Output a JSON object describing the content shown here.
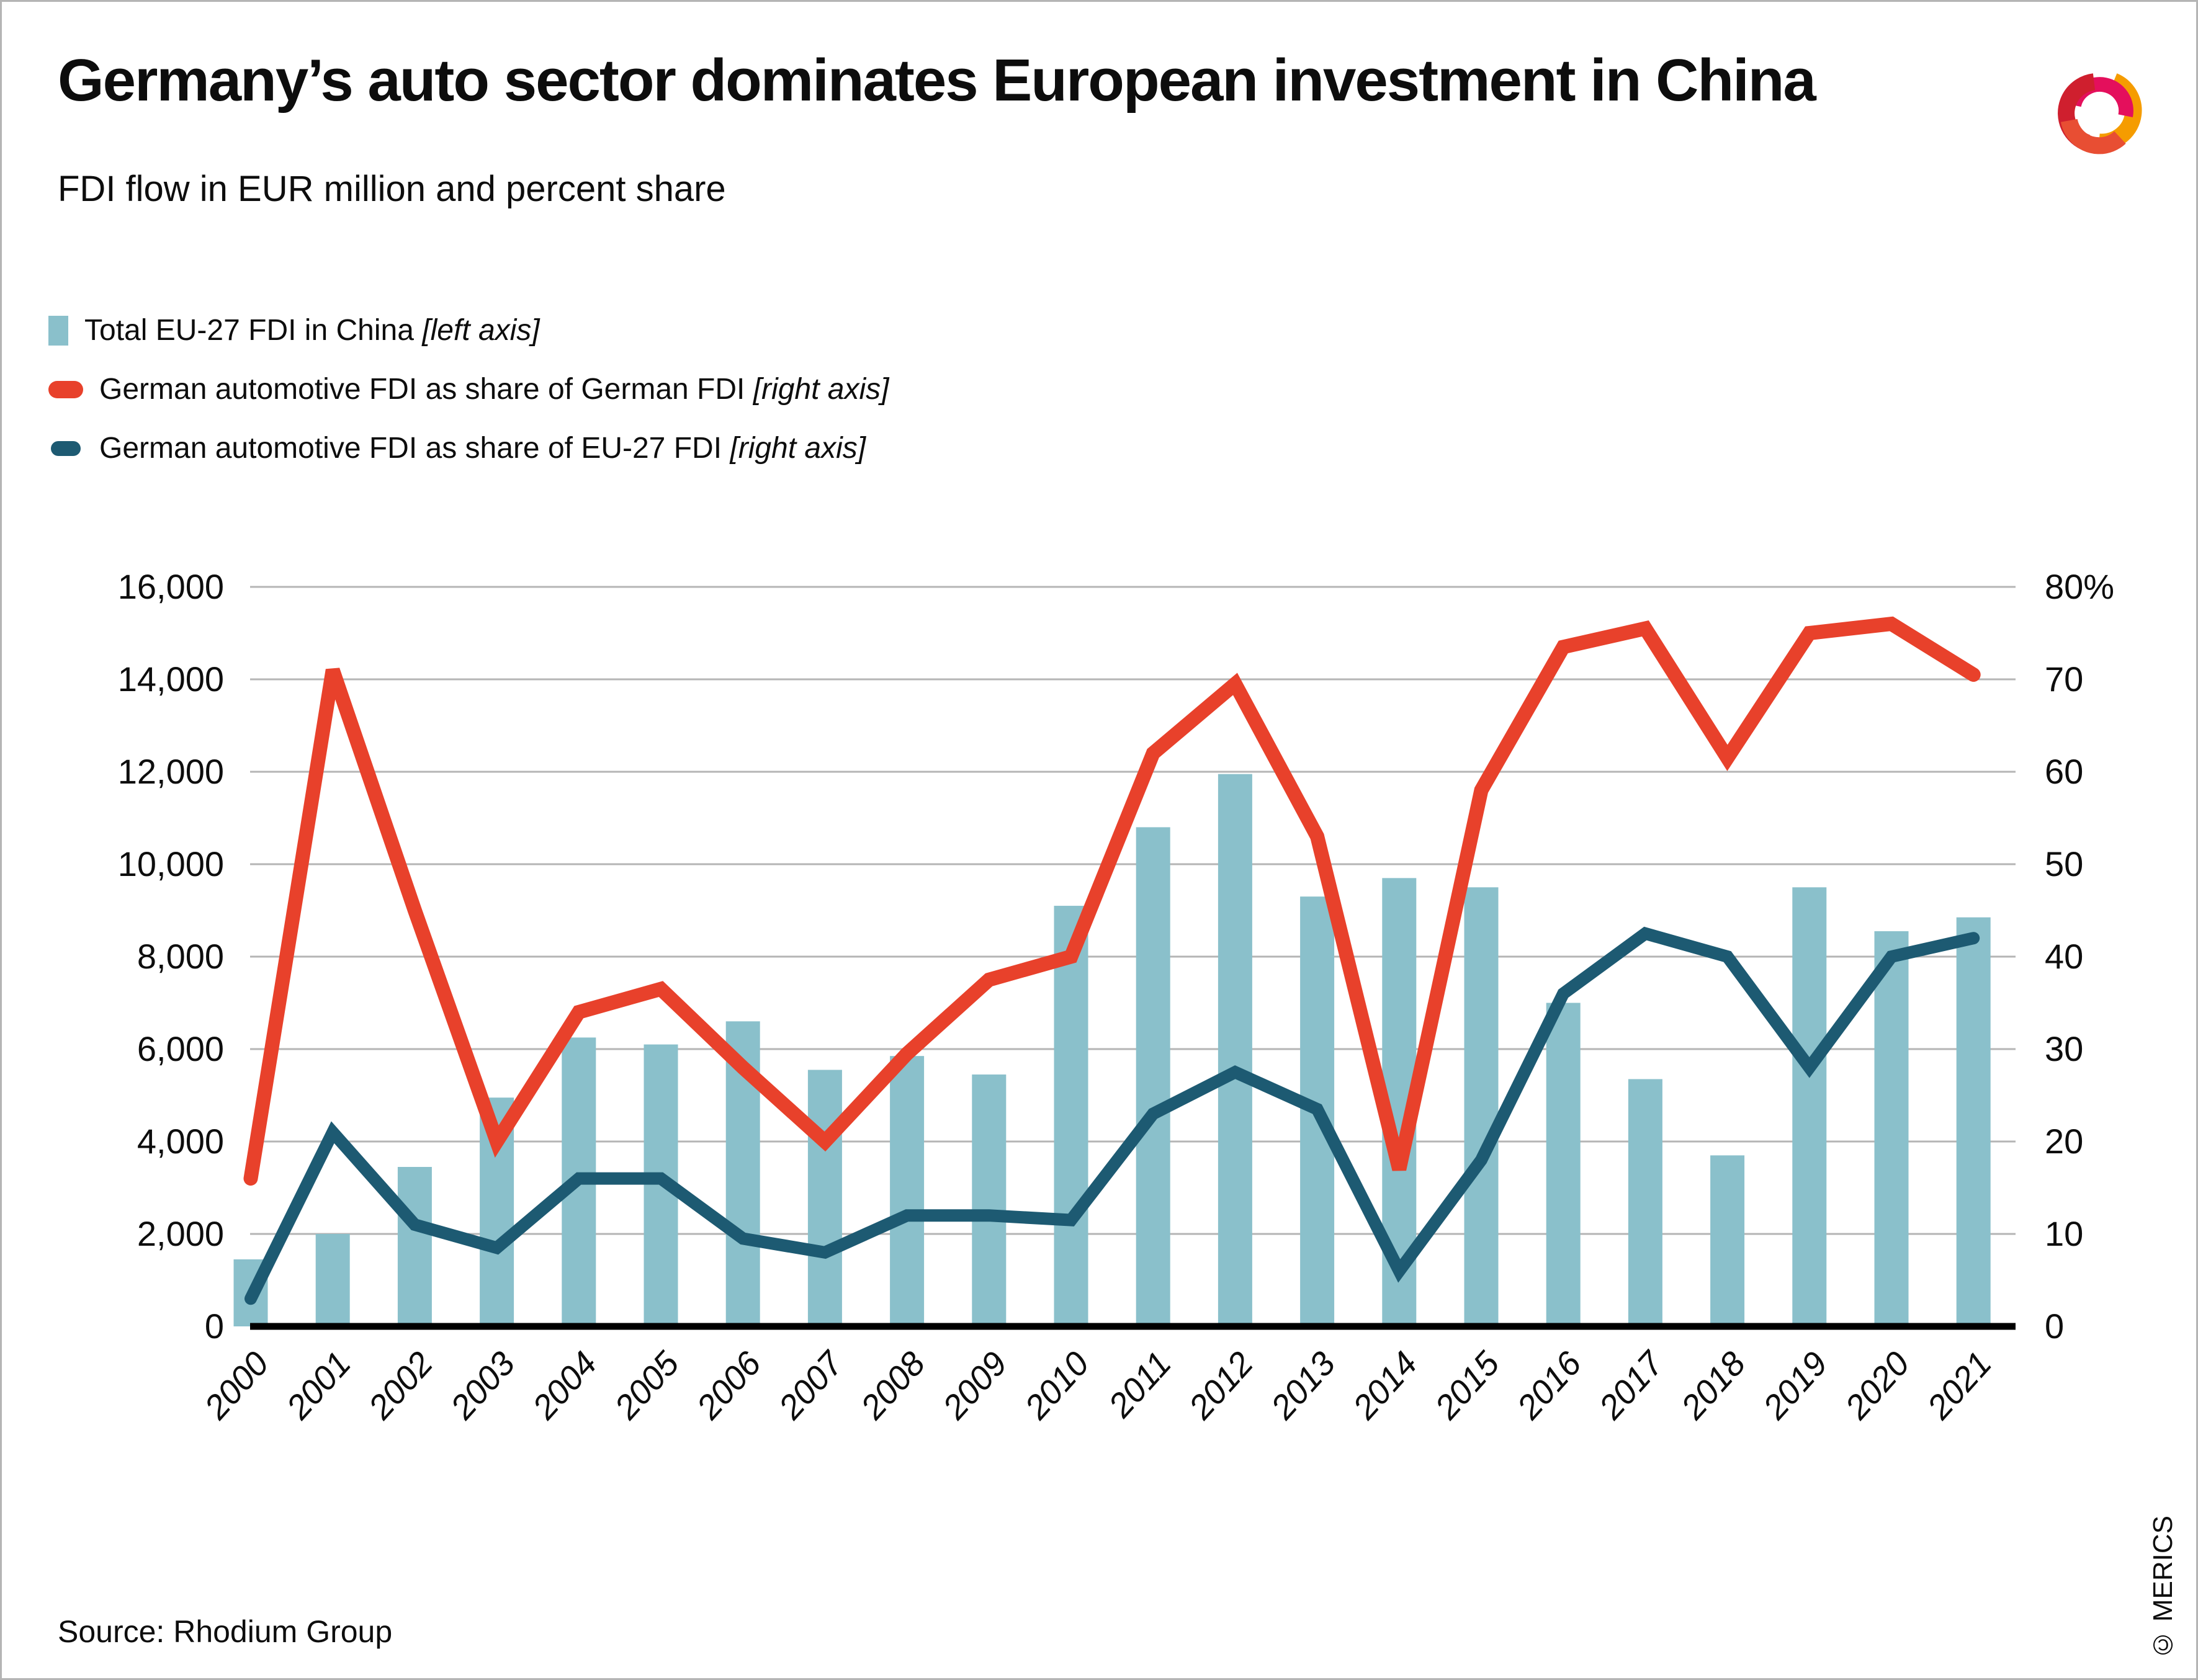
{
  "header": {
    "title": "Germany’s auto sector dominates European investment in China",
    "subtitle": "FDI flow in EUR million and percent share"
  },
  "legend": {
    "items": [
      {
        "label": "Total EU-27 FDI in China",
        "axis_note": "[left axis]",
        "swatch_color": "#8ac0cb",
        "swatch_type": "bar"
      },
      {
        "label": "German automotive FDI as share of German FDI",
        "axis_note": "[right axis]",
        "swatch_color": "#e8412b",
        "swatch_type": "line"
      },
      {
        "label": "German automotive FDI as share of EU-27 FDI",
        "axis_note": "[right axis]",
        "swatch_color": "#1d5a72",
        "swatch_type": "line"
      }
    ]
  },
  "footer": {
    "source": "Source: Rhodium Group",
    "credit": "© MERICS"
  },
  "logo": {
    "name": "merics-logo",
    "colors": {
      "red": "#cf1f2e",
      "orange": "#f59c00",
      "magenta": "#e40f5c",
      "vermilion": "#e84e33"
    }
  },
  "chart_data": {
    "type": "bar+line combo",
    "title": "FDI flow in EUR million and percent share",
    "grid": true,
    "categories": [
      "2000",
      "2001",
      "2002",
      "2003",
      "2004",
      "2005",
      "2006",
      "2007",
      "2008",
      "2009",
      "2010",
      "2011",
      "2012",
      "2013",
      "2014",
      "2015",
      "2016",
      "2017",
      "2018",
      "2019",
      "2020",
      "2021"
    ],
    "series": [
      {
        "name": "Total EU-27 FDI in China",
        "type": "bar",
        "axis": "left",
        "unit": "EUR million",
        "color": "#8ac0cb",
        "values": [
          1450,
          2000,
          3450,
          4950,
          6250,
          6100,
          6600,
          5550,
          5850,
          5450,
          9100,
          10800,
          11950,
          9300,
          9700,
          9500,
          7000,
          5350,
          3700,
          9500,
          8550,
          8850
        ]
      },
      {
        "name": "German automotive FDI as share of German FDI",
        "type": "line",
        "axis": "right",
        "unit": "percent",
        "color": "#e8412b",
        "values": [
          16,
          71,
          45,
          20,
          34,
          36.5,
          28,
          20,
          29.5,
          37.5,
          40,
          62,
          69.5,
          53,
          17,
          58,
          73.5,
          75.5,
          61.5,
          75,
          76,
          70.5
        ]
      },
      {
        "name": "German automotive FDI as share of EU-27 FDI",
        "type": "line",
        "axis": "right",
        "unit": "percent",
        "color": "#1d5a72",
        "values": [
          3,
          21,
          11,
          8.5,
          16,
          16,
          9.5,
          8,
          12,
          12,
          11.5,
          23,
          27.5,
          23.5,
          6,
          18,
          36,
          42.5,
          40,
          28,
          40,
          42
        ]
      }
    ],
    "left_axis": {
      "min": 0,
      "max": 16000,
      "step": 2000,
      "tick_labels": [
        "0",
        "2,000",
        "4,000",
        "6,000",
        "8,000",
        "10,000",
        "12,000",
        "14,000",
        "16,000"
      ]
    },
    "right_axis": {
      "min": 0,
      "max": 80,
      "step": 10,
      "tick_labels": [
        "0",
        "10",
        "20",
        "30",
        "40",
        "50",
        "60",
        "70",
        "80%"
      ]
    },
    "legend_position": "top-left",
    "gridline_color": "#b5b5b5",
    "axisline_color": "#000000"
  }
}
